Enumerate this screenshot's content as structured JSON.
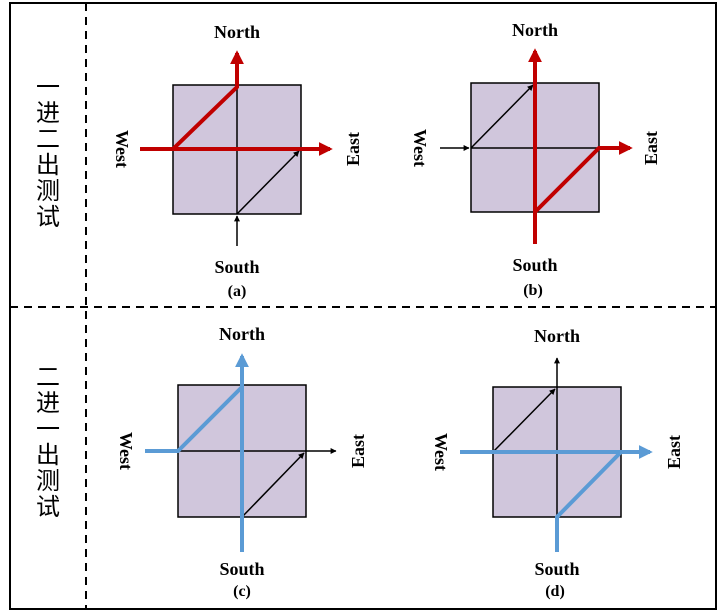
{
  "row_labels": [
    "一进二出测试",
    "二进一出测试"
  ],
  "directions": {
    "north": "North",
    "south": "South",
    "east": "East",
    "west": "West"
  },
  "panels": [
    {
      "caption": "(a)",
      "highlight_color": "#c00000",
      "highlight_path": "west-to-north-and-east"
    },
    {
      "caption": "(b)",
      "highlight_color": "#c00000",
      "highlight_path": "south-to-north-and-east"
    },
    {
      "caption": "(c)",
      "highlight_color": "#5b9bd5",
      "highlight_path": "west-and-south-to-north"
    },
    {
      "caption": "(d)",
      "highlight_color": "#5b9bd5",
      "highlight_path": "west-and-south-to-east"
    }
  ],
  "colors": {
    "box_fill": "#d0c6dc",
    "box_stroke": "#000000",
    "base_arrow": "#000000"
  }
}
